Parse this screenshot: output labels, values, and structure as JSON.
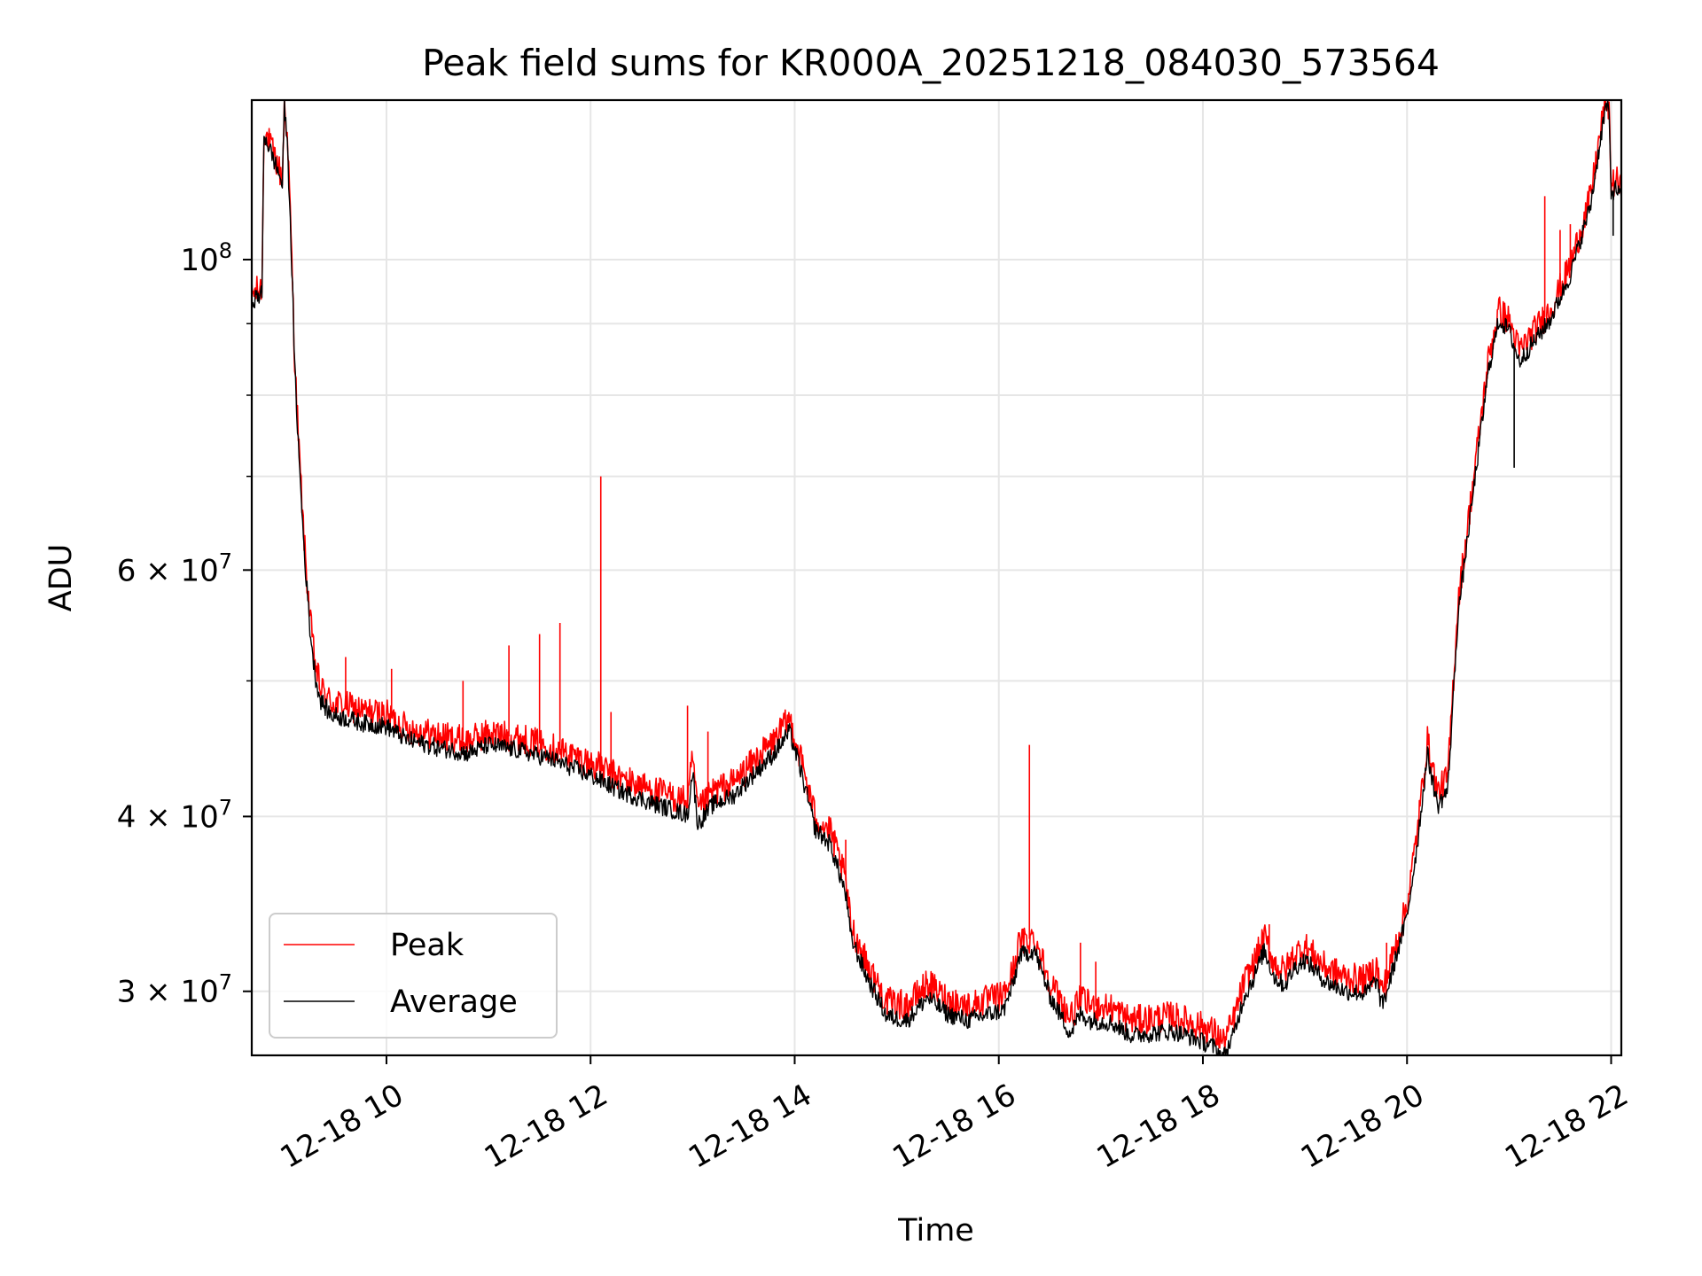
{
  "chart_data": {
    "type": "line",
    "title": "Peak field sums for KR000A_20251218_084030_573564",
    "xlabel": "Time",
    "ylabel": "ADU",
    "yscale": "log",
    "grid": true,
    "legend_position": "bottom-left",
    "x_unit": "hours since 2025-12-18 00:00",
    "xlim": [
      8.68,
      22.1
    ],
    "ylim": [
      27000000,
      130000000
    ],
    "x_ticks": [
      {
        "value": 10,
        "label": "12-18 10"
      },
      {
        "value": 12,
        "label": "12-18 12"
      },
      {
        "value": 14,
        "label": "12-18 14"
      },
      {
        "value": 16,
        "label": "12-18 16"
      },
      {
        "value": 18,
        "label": "12-18 18"
      },
      {
        "value": 20,
        "label": "12-18 20"
      },
      {
        "value": 22,
        "label": "12-18 22"
      }
    ],
    "y_ticks": [
      {
        "value": 30000000,
        "label_base": "3 × 10",
        "label_exp": "7"
      },
      {
        "value": 40000000,
        "label_base": "4 × 10",
        "label_exp": "7"
      },
      {
        "value": 60000000,
        "label_base": "6 × 10",
        "label_exp": "7"
      },
      {
        "value": 100000000,
        "label_base": "10",
        "label_exp": "8"
      }
    ],
    "y_minor_ticks": [
      50000000,
      70000000,
      80000000,
      90000000
    ],
    "series": [
      {
        "name": "Peak",
        "color": "#ff0000",
        "x": [
          8.68,
          8.78,
          8.8,
          8.95,
          8.98,
          9.0,
          9.02,
          9.05,
          9.08,
          9.1,
          9.15,
          9.2,
          9.25,
          9.3,
          9.35,
          9.45,
          9.6,
          9.8,
          10.0,
          10.2,
          10.5,
          10.8,
          11.0,
          11.3,
          11.6,
          12.0,
          12.3,
          12.6,
          12.95,
          13.0,
          13.05,
          13.2,
          13.4,
          13.6,
          13.8,
          13.95,
          14.05,
          14.2,
          14.35,
          14.45,
          14.5,
          14.55,
          14.7,
          14.9,
          15.1,
          15.3,
          15.5,
          15.7,
          15.9,
          16.05,
          16.15,
          16.2,
          16.35,
          16.5,
          16.7,
          16.8,
          16.9,
          17.1,
          17.3,
          17.5,
          17.7,
          17.9,
          18.1,
          18.2,
          18.3,
          18.4,
          18.5,
          18.6,
          18.7,
          18.8,
          18.9,
          19.0,
          19.2,
          19.4,
          19.6,
          19.7,
          19.75,
          19.8,
          19.9,
          20.0,
          20.1,
          20.2,
          20.3,
          20.4,
          20.5,
          20.6,
          20.7,
          20.8,
          20.9,
          21.0,
          21.1,
          21.2,
          21.4,
          21.6,
          21.8,
          21.9,
          21.95,
          21.98,
          22.0,
          22.05,
          22.1
        ],
        "y": [
          94500000,
          95500000,
          124000000,
          116000000,
          114000000,
          129500000,
          125000000,
          112000000,
          96000000,
          85000000,
          71500000,
          62000000,
          55500000,
          51500000,
          49500000,
          48300000,
          48000000,
          47500000,
          47300000,
          46300000,
          45700000,
          45300000,
          45900000,
          45500000,
          44900000,
          43700000,
          42600000,
          41800000,
          41000000,
          44000000,
          40300000,
          41700000,
          42300000,
          43800000,
          45300000,
          47000000,
          44300000,
          40000000,
          39000000,
          37000000,
          36000000,
          33500000,
          31500000,
          29500000,
          29300000,
          30400000,
          29600000,
          29300000,
          29600000,
          29800000,
          31200000,
          32500000,
          32800000,
          30500000,
          28700000,
          29600000,
          29300000,
          29200000,
          28600000,
          28700000,
          28800000,
          28500000,
          28100000,
          27600000,
          28600000,
          30400000,
          31400000,
          32800000,
          31400000,
          31000000,
          31900000,
          32300000,
          31200000,
          30700000,
          30600000,
          31300000,
          30000000,
          30600000,
          32600000,
          34600000,
          39000000,
          45300000,
          41600000,
          42700000,
          57000000,
          65000000,
          74500000,
          85000000,
          92000000,
          90500000,
          86000000,
          88000000,
          92000000,
          99000000,
          111000000,
          124000000,
          130500000,
          128500000,
          113000000,
          114000000,
          112000000
        ]
      },
      {
        "name": "Average",
        "color": "#000000",
        "x": [
          8.68,
          8.78,
          8.8,
          8.95,
          8.98,
          9.0,
          9.02,
          9.05,
          9.08,
          9.1,
          9.15,
          9.2,
          9.25,
          9.3,
          9.35,
          9.45,
          9.6,
          9.8,
          10.0,
          10.2,
          10.5,
          10.8,
          11.0,
          11.3,
          11.6,
          12.0,
          12.3,
          12.6,
          12.95,
          13.0,
          13.05,
          13.2,
          13.4,
          13.6,
          13.8,
          13.95,
          14.05,
          14.2,
          14.35,
          14.45,
          14.5,
          14.55,
          14.7,
          14.9,
          15.1,
          15.3,
          15.5,
          15.7,
          15.9,
          16.05,
          16.15,
          16.2,
          16.35,
          16.5,
          16.7,
          16.8,
          16.9,
          17.1,
          17.3,
          17.5,
          17.7,
          17.9,
          18.1,
          18.2,
          18.3,
          18.4,
          18.5,
          18.6,
          18.7,
          18.8,
          18.9,
          19.0,
          19.2,
          19.4,
          19.6,
          19.7,
          19.75,
          19.8,
          19.9,
          20.0,
          20.1,
          20.2,
          20.3,
          20.4,
          20.5,
          20.6,
          20.7,
          20.8,
          20.9,
          21.0,
          21.1,
          21.2,
          21.4,
          21.6,
          21.8,
          21.9,
          21.95,
          21.98,
          22.0,
          22.05,
          22.1
        ],
        "y": [
          93500000,
          94500000,
          123000000,
          115000000,
          113000000,
          129000000,
          124000000,
          111000000,
          95000000,
          84000000,
          70500000,
          61000000,
          54500000,
          50500000,
          48500000,
          47300000,
          47000000,
          46600000,
          46400000,
          45400000,
          44800000,
          44400000,
          45000000,
          44600000,
          44000000,
          42800000,
          41700000,
          40900000,
          40100000,
          43100000,
          39500000,
          40800000,
          41400000,
          42900000,
          44400000,
          46000000,
          43400000,
          39200000,
          38200000,
          36200000,
          35200000,
          32800000,
          30800000,
          28800000,
          28600000,
          29700000,
          28900000,
          28600000,
          28900000,
          29100000,
          30500000,
          31800000,
          32100000,
          29800000,
          28000000,
          28900000,
          28600000,
          28500000,
          27900000,
          28000000,
          28100000,
          27800000,
          27400000,
          26900000,
          27900000,
          29700000,
          30700000,
          32100000,
          30700000,
          30300000,
          31200000,
          31600000,
          30500000,
          30000000,
          29900000,
          30600000,
          29300000,
          29900000,
          31900000,
          33900000,
          38200000,
          44300000,
          40700000,
          41800000,
          55800000,
          63800000,
          73000000,
          83500000,
          90500000,
          89000000,
          84500000,
          86500000,
          90500000,
          97500000,
          109500000,
          122500000,
          129000000,
          127000000,
          111500000,
          112500000,
          110500000
        ]
      }
    ],
    "spikes": [
      {
        "x": 9.6,
        "y": 52000000
      },
      {
        "x": 10.05,
        "y": 51000000
      },
      {
        "x": 10.75,
        "y": 50000000
      },
      {
        "x": 11.2,
        "y": 53000000
      },
      {
        "x": 11.5,
        "y": 54000000
      },
      {
        "x": 11.7,
        "y": 55000000
      },
      {
        "x": 12.1,
        "y": 70000000
      },
      {
        "x": 12.2,
        "y": 47500000
      },
      {
        "x": 12.95,
        "y": 48000000
      },
      {
        "x": 13.15,
        "y": 46000000
      },
      {
        "x": 14.5,
        "y": 38500000
      },
      {
        "x": 16.3,
        "y": 45000000
      },
      {
        "x": 16.8,
        "y": 32500000
      },
      {
        "x": 16.95,
        "y": 31500000
      },
      {
        "x": 18.65,
        "y": 33500000
      },
      {
        "x": 19.7,
        "y": 31500000
      },
      {
        "x": 19.8,
        "y": 32500000
      },
      {
        "x": 21.35,
        "y": 111000000
      },
      {
        "x": 21.5,
        "y": 105000000
      },
      {
        "x": 21.6,
        "y": 106000000
      },
      {
        "x": 21.7,
        "y": 104000000
      }
    ],
    "average_dips": [
      {
        "x": 21.05,
        "y": 71000000
      },
      {
        "x": 22.02,
        "y": 104000000
      }
    ],
    "legend": [
      {
        "label": "Peak",
        "color": "#ff0000"
      },
      {
        "label": "Average",
        "color": "#000000"
      }
    ]
  }
}
